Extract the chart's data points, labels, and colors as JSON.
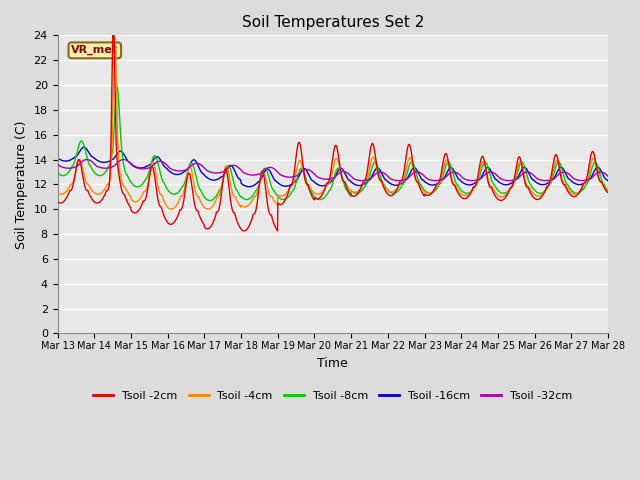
{
  "title": "Soil Temperatures Set 2",
  "xlabel": "Time",
  "ylabel": "Soil Temperature (C)",
  "ylim": [
    0,
    24
  ],
  "yticks": [
    0,
    2,
    4,
    6,
    8,
    10,
    12,
    14,
    16,
    18,
    20,
    22,
    24
  ],
  "xtick_labels": [
    "Mar 13",
    "Mar 14",
    "Mar 15",
    "Mar 16",
    "Mar 17",
    "Mar 18",
    "Mar 19",
    "Mar 20",
    "Mar 21",
    "Mar 22",
    "Mar 23",
    "Mar 24",
    "Mar 25",
    "Mar 26",
    "Mar 27",
    "Mar 28"
  ],
  "series_colors": {
    "Tsoil -2cm": "#dd0000",
    "Tsoil -4cm": "#ff8800",
    "Tsoil -8cm": "#00cc00",
    "Tsoil -16cm": "#0000cc",
    "Tsoil -32cm": "#aa00aa"
  },
  "annotation_text": "VR_met",
  "bg_color": "#e8e8e8",
  "grid_color": "#ffffff",
  "fig_bg": "#dcdcdc"
}
